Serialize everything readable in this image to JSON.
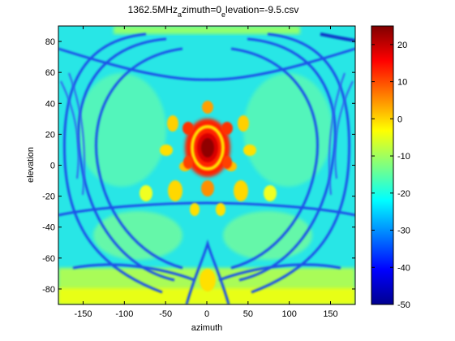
{
  "chart_data": {
    "type": "heatmap",
    "title": "1362.5MHz",
    "title_sub1": "a",
    "title_mid": "zimuth=0",
    "title_sub2": "e",
    "title_end": "levation=-9.5.csv",
    "xlabel": "azimuth",
    "ylabel": "elevation",
    "xlim": [
      -180,
      180
    ],
    "ylim": [
      -90,
      90
    ],
    "xticks": [
      -150,
      -100,
      -50,
      0,
      50,
      100,
      150
    ],
    "yticks": [
      -80,
      -60,
      -40,
      -20,
      0,
      20,
      40,
      60,
      80
    ],
    "colorbar": {
      "range": [
        -50,
        25
      ],
      "ticks": [
        -50,
        -40,
        -30,
        -20,
        -10,
        0,
        10,
        20
      ],
      "colormap": "jet"
    },
    "features": [
      {
        "name": "main lobe",
        "azimuth": 0,
        "elevation": 10,
        "value": 22
      },
      {
        "name": "sidelobe ring",
        "azimuth": 0,
        "elevation": 10,
        "value": 2
      },
      {
        "name": "lower lobe",
        "azimuth": 0,
        "elevation": -78,
        "value": -5
      },
      {
        "name": "background",
        "value": -17
      }
    ]
  }
}
